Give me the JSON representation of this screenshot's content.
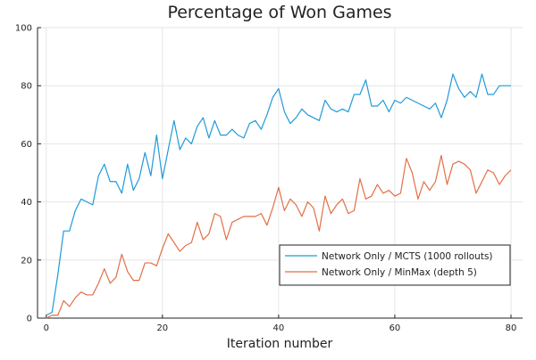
{
  "chart_data": {
    "type": "line",
    "title": "Percentage of Won Games",
    "xlabel": "Iteration number",
    "ylabel": "",
    "xlim": [
      -1.5,
      82
    ],
    "ylim": [
      0,
      100
    ],
    "xticks": [
      0,
      20,
      40,
      60,
      80
    ],
    "yticks": [
      0,
      20,
      40,
      60,
      80,
      100
    ],
    "grid": true,
    "legend_position": "bottom-right",
    "series": [
      {
        "name": "Network Only / MCTS (1000 rollouts)",
        "color": "#1f9bd7",
        "x": [
          0,
          1,
          2,
          3,
          4,
          5,
          6,
          7,
          8,
          9,
          10,
          11,
          12,
          13,
          14,
          15,
          16,
          17,
          18,
          19,
          20,
          21,
          22,
          23,
          24,
          25,
          26,
          27,
          28,
          29,
          30,
          31,
          32,
          33,
          34,
          35,
          36,
          37,
          38,
          39,
          40,
          41,
          42,
          43,
          44,
          45,
          46,
          47,
          48,
          49,
          50,
          51,
          52,
          53,
          54,
          55,
          56,
          57,
          58,
          59,
          60,
          61,
          62,
          63,
          64,
          65,
          66,
          67,
          68,
          69,
          70,
          71,
          72,
          73,
          74,
          75,
          76,
          77,
          78,
          79,
          80
        ],
        "values": [
          1,
          2,
          15,
          30,
          30,
          37,
          41,
          40,
          39,
          49,
          53,
          47,
          47,
          43,
          53,
          44,
          48,
          57,
          49,
          63,
          48,
          58,
          68,
          58,
          62,
          60,
          66,
          69,
          62,
          68,
          63,
          63,
          65,
          63,
          62,
          67,
          68,
          65,
          70,
          76,
          79,
          71,
          67,
          69,
          72,
          70,
          69,
          68,
          75,
          72,
          71,
          72,
          71,
          77,
          77,
          82,
          73,
          73,
          75,
          71,
          75,
          74,
          76,
          75,
          74,
          73,
          72,
          74,
          69,
          75,
          84,
          79,
          76,
          78,
          76,
          84,
          77,
          77,
          80,
          80,
          80
        ]
      },
      {
        "name": "Network Only / MinMax (depth 5)",
        "color": "#e26f46",
        "x": [
          0,
          1,
          2,
          3,
          4,
          5,
          6,
          7,
          8,
          9,
          10,
          11,
          12,
          13,
          14,
          15,
          16,
          17,
          18,
          19,
          20,
          21,
          22,
          23,
          24,
          25,
          26,
          27,
          28,
          29,
          30,
          31,
          32,
          33,
          34,
          35,
          36,
          37,
          38,
          39,
          40,
          41,
          42,
          43,
          44,
          45,
          46,
          47,
          48,
          49,
          50,
          51,
          52,
          53,
          54,
          55,
          56,
          57,
          58,
          59,
          60,
          61,
          62,
          63,
          64,
          65,
          66,
          67,
          68,
          69,
          70,
          71,
          72,
          73,
          74,
          75,
          76,
          77,
          78,
          79,
          80
        ],
        "values": [
          0,
          1,
          1,
          6,
          4,
          7,
          9,
          8,
          8,
          12,
          17,
          12,
          14,
          22,
          16,
          13,
          13,
          19,
          19,
          18,
          24,
          29,
          26,
          23,
          25,
          26,
          33,
          27,
          29,
          36,
          35,
          27,
          33,
          34,
          35,
          35,
          35,
          36,
          32,
          38,
          45,
          37,
          41,
          39,
          35,
          40,
          38,
          30,
          42,
          36,
          39,
          41,
          36,
          37,
          48,
          41,
          42,
          46,
          43,
          44,
          42,
          43,
          55,
          50,
          41,
          47,
          44,
          47,
          56,
          46,
          53,
          54,
          53,
          51,
          43,
          47,
          51,
          50,
          46,
          49,
          51
        ]
      }
    ]
  }
}
